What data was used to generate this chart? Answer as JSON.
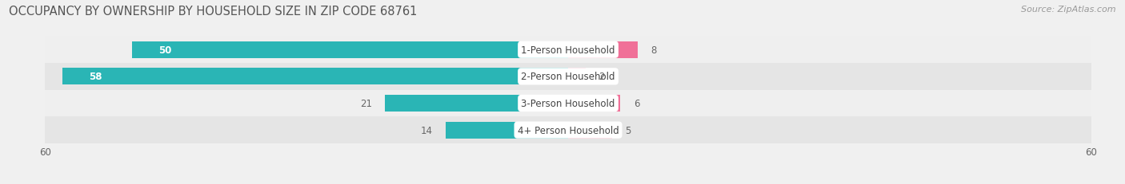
{
  "title": "OCCUPANCY BY OWNERSHIP BY HOUSEHOLD SIZE IN ZIP CODE 68761",
  "source": "Source: ZipAtlas.com",
  "categories": [
    "1-Person Household",
    "2-Person Household",
    "3-Person Household",
    "4+ Person Household"
  ],
  "owner_values": [
    50,
    58,
    21,
    14
  ],
  "renter_values": [
    8,
    2,
    6,
    5
  ],
  "owner_color": "#2ab5b5",
  "renter_color": "#f07098",
  "renter_color_2": "#f0a0b8",
  "xlim": [
    -60,
    60
  ],
  "bar_height": 0.62,
  "title_fontsize": 10.5,
  "source_fontsize": 8,
  "label_fontsize": 8.5,
  "value_fontsize": 8.5,
  "tick_fontsize": 8.5,
  "legend_fontsize": 8.5
}
